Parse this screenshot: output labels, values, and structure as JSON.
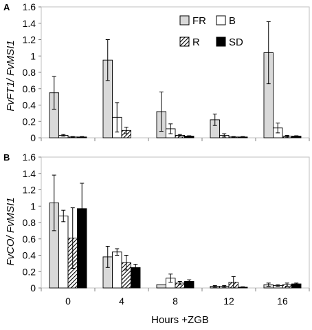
{
  "figure": {
    "xlabel": "Hours +ZGB",
    "series_styles": [
      {
        "name": "FR",
        "fill": "#d9d9d9",
        "pattern": "solid"
      },
      {
        "name": "B",
        "fill": "#ffffff",
        "pattern": "solid"
      },
      {
        "name": "R",
        "fill": "#ffffff",
        "pattern": "hatch"
      },
      {
        "name": "SD",
        "fill": "#000000",
        "pattern": "solid"
      }
    ]
  },
  "chart_data": [
    {
      "type": "bar",
      "panel_label": "A",
      "ylabel": "FvFT1/ FvMSI1",
      "categories": [
        "0",
        "4",
        "8",
        "12",
        "16"
      ],
      "ylim": [
        0,
        1.6
      ],
      "yticks": [
        "0",
        "0.2",
        "0.4",
        "0.6",
        "0.8",
        "1",
        "1.2",
        "1.4",
        "1.6"
      ],
      "legend": {
        "position": "top-right",
        "entries": [
          "FR",
          "B",
          "R",
          "SD"
        ]
      },
      "series": [
        {
          "name": "FR",
          "values": [
            0.55,
            0.95,
            0.32,
            0.22,
            1.04
          ],
          "errors": [
            0.2,
            0.25,
            0.24,
            0.07,
            0.38
          ]
        },
        {
          "name": "B",
          "values": [
            0.03,
            0.25,
            0.11,
            0.03,
            0.12
          ],
          "errors": [
            0.01,
            0.18,
            0.06,
            0.02,
            0.06
          ]
        },
        {
          "name": "R",
          "values": [
            0.01,
            0.09,
            0.03,
            0.01,
            0.02
          ],
          "errors": [
            0.005,
            0.04,
            0.01,
            0.005,
            0.01
          ]
        },
        {
          "name": "SD",
          "values": [
            0.01,
            0.0,
            0.02,
            0.01,
            0.02
          ],
          "errors": [
            0.005,
            0.0,
            0.005,
            0.005,
            0.005
          ]
        }
      ]
    },
    {
      "type": "bar",
      "panel_label": "B",
      "ylabel": "FvCO/ FvMSI1",
      "categories": [
        "0",
        "4",
        "8",
        "12",
        "16"
      ],
      "ylim": [
        0,
        1.6
      ],
      "yticks": [
        "0",
        "0.2",
        "0.4",
        "0.6",
        "0.8",
        "1",
        "1.2",
        "1.4",
        "1.6"
      ],
      "series": [
        {
          "name": "FR",
          "values": [
            1.04,
            0.38,
            0.04,
            0.02,
            0.04
          ],
          "errors": [
            0.34,
            0.13,
            0.0,
            0.01,
            0.02
          ]
        },
        {
          "name": "B",
          "values": [
            0.88,
            0.44,
            0.12,
            0.02,
            0.03
          ],
          "errors": [
            0.07,
            0.04,
            0.05,
            0.01,
            0.01
          ]
        },
        {
          "name": "R",
          "values": [
            0.61,
            0.31,
            0.06,
            0.07,
            0.04
          ],
          "errors": [
            0.37,
            0.09,
            0.02,
            0.07,
            0.02
          ]
        },
        {
          "name": "SD",
          "values": [
            0.97,
            0.25,
            0.08,
            0.01,
            0.05
          ],
          "errors": [
            0.31,
            0.04,
            0.02,
            0.005,
            0.01
          ]
        }
      ]
    }
  ]
}
